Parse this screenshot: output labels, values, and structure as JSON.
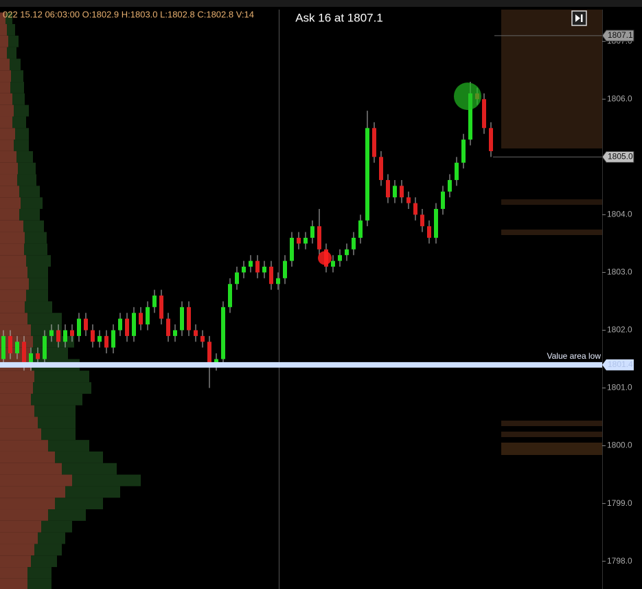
{
  "chart_data": {
    "type": "candlestick",
    "header": "022 15.12 06:03:00 O:1802.9 H:1803.0 L:1802.8 C:1802.8 V:14",
    "title": "Ask 16 at 1807.1",
    "ylim": [
      1797.52,
      1807.55
    ],
    "yticks": [
      {
        "value": 1807,
        "label": "1807.0"
      },
      {
        "value": 1806,
        "label": "1806.0"
      },
      {
        "value": 1805,
        "label": "1805.0"
      },
      {
        "value": 1804,
        "label": "1804.0"
      },
      {
        "value": 1803,
        "label": "1803.0"
      },
      {
        "value": 1802,
        "label": "1802.0"
      },
      {
        "value": 1801,
        "label": "1801.0"
      },
      {
        "value": 1800,
        "label": "1800.0"
      },
      {
        "value": 1799,
        "label": "1799.0"
      },
      {
        "value": 1798,
        "label": "1798.0"
      }
    ],
    "up_color": "#22dd22",
    "down_color": "#e02020",
    "candles": {
      "open": [
        1801.5,
        1801.9,
        1801.6,
        1801.8,
        1801.4,
        1801.6,
        1801.5,
        1801.9,
        1802.0,
        1801.8,
        1802.0,
        1801.9,
        1802.2,
        1802.0,
        1801.8,
        1801.9,
        1801.7,
        1802.0,
        1802.2,
        1801.9,
        1802.3,
        1802.1,
        1802.4,
        1802.6,
        1802.2,
        1801.9,
        1802.0,
        1802.4,
        1802.0,
        1801.9,
        1801.8,
        1801.4,
        1801.5,
        1802.4,
        1802.8,
        1803.0,
        1803.1,
        1803.2,
        1803.0,
        1803.1,
        1802.8,
        1802.9,
        1803.2,
        1803.6,
        1803.5,
        1803.6,
        1803.8,
        1803.4,
        1803.1,
        1803.2,
        1803.3,
        1803.4,
        1803.6,
        1803.9,
        1805.5,
        1805.0,
        1804.6,
        1804.3,
        1804.5,
        1804.3,
        1804.2,
        1804.0,
        1803.8,
        1803.6,
        1804.1,
        1804.4,
        1804.6,
        1804.9,
        1805.3,
        1806.1,
        1806.0,
        1805.5
      ],
      "high": [
        1802.0,
        1802.0,
        1801.9,
        1801.9,
        1801.7,
        1801.7,
        1802.0,
        1802.1,
        1802.1,
        1802.1,
        1802.1,
        1802.3,
        1802.3,
        1802.1,
        1802.0,
        1802.0,
        1802.1,
        1802.3,
        1802.3,
        1802.4,
        1802.4,
        1802.5,
        1802.7,
        1802.7,
        1802.3,
        1802.1,
        1802.5,
        1802.5,
        1802.1,
        1802.0,
        1801.9,
        1801.6,
        1802.5,
        1802.9,
        1803.1,
        1803.2,
        1803.3,
        1803.3,
        1803.2,
        1803.2,
        1803.0,
        1803.3,
        1803.7,
        1803.7,
        1803.7,
        1803.9,
        1804.1,
        1803.5,
        1803.3,
        1803.4,
        1803.5,
        1803.7,
        1804.0,
        1805.8,
        1805.6,
        1805.1,
        1804.7,
        1804.6,
        1804.6,
        1804.4,
        1804.3,
        1804.1,
        1803.9,
        1804.2,
        1804.5,
        1804.7,
        1805.0,
        1805.4,
        1806.3,
        1806.2,
        1806.1,
        1805.6
      ],
      "low": [
        1801.4,
        1801.5,
        1801.5,
        1801.3,
        1801.3,
        1801.4,
        1801.4,
        1801.8,
        1801.7,
        1801.7,
        1801.8,
        1801.8,
        1801.9,
        1801.7,
        1801.7,
        1801.6,
        1801.6,
        1801.9,
        1801.8,
        1801.8,
        1802.0,
        1802.0,
        1802.3,
        1802.1,
        1801.8,
        1801.8,
        1801.9,
        1801.9,
        1801.8,
        1801.7,
        1801.0,
        1801.3,
        1801.4,
        1802.3,
        1802.7,
        1802.9,
        1803.0,
        1802.9,
        1802.9,
        1802.7,
        1802.7,
        1802.8,
        1803.1,
        1803.4,
        1803.4,
        1803.5,
        1803.3,
        1803.0,
        1803.0,
        1803.1,
        1803.2,
        1803.3,
        1803.5,
        1803.8,
        1804.9,
        1804.5,
        1804.2,
        1804.2,
        1804.2,
        1804.1,
        1803.9,
        1803.7,
        1803.5,
        1803.5,
        1804.0,
        1804.3,
        1804.5,
        1804.8,
        1805.2,
        1805.9,
        1805.4,
        1805.0
      ],
      "close": [
        1801.9,
        1801.6,
        1801.8,
        1801.4,
        1801.6,
        1801.5,
        1801.9,
        1802.0,
        1801.8,
        1802.0,
        1801.9,
        1802.2,
        1802.0,
        1801.8,
        1801.9,
        1801.7,
        1802.0,
        1802.2,
        1801.9,
        1802.3,
        1802.1,
        1802.4,
        1802.6,
        1802.2,
        1801.9,
        1802.0,
        1802.4,
        1802.0,
        1801.9,
        1801.8,
        1801.4,
        1801.5,
        1802.4,
        1802.8,
        1803.0,
        1803.1,
        1803.2,
        1803.0,
        1803.1,
        1802.8,
        1802.9,
        1803.2,
        1803.6,
        1803.5,
        1803.6,
        1803.8,
        1803.4,
        1803.1,
        1803.2,
        1803.3,
        1803.4,
        1803.6,
        1803.9,
        1805.5,
        1805.0,
        1804.6,
        1804.3,
        1804.5,
        1804.3,
        1804.2,
        1804.0,
        1803.8,
        1803.6,
        1804.1,
        1804.4,
        1804.6,
        1804.9,
        1805.3,
        1806.1,
        1806.0,
        1805.5,
        1805.1
      ]
    },
    "volume_profile": {
      "xlim": [
        0,
        250
      ],
      "prices": [
        1807.4,
        1807.2,
        1807.0,
        1806.8,
        1806.6,
        1806.4,
        1806.2,
        1806.0,
        1805.8,
        1805.6,
        1805.4,
        1805.2,
        1805.0,
        1804.8,
        1804.6,
        1804.4,
        1804.2,
        1804.0,
        1803.8,
        1803.6,
        1803.4,
        1803.2,
        1803.0,
        1802.8,
        1802.6,
        1802.4,
        1802.2,
        1802.0,
        1801.8,
        1801.6,
        1801.4,
        1801.2,
        1801.0,
        1800.8,
        1800.6,
        1800.4,
        1800.2,
        1800.0,
        1799.8,
        1799.6,
        1799.4,
        1799.2,
        1799.0,
        1798.8,
        1798.6,
        1798.4,
        1798.2,
        1798.0,
        1797.8,
        1797.6
      ],
      "sell": [
        8,
        10,
        12,
        10,
        14,
        16,
        15,
        18,
        20,
        18,
        22,
        20,
        24,
        26,
        25,
        28,
        30,
        28,
        34,
        36,
        35,
        38,
        40,
        42,
        38,
        36,
        40,
        45,
        48,
        44,
        46,
        50,
        48,
        45,
        50,
        55,
        60,
        70,
        80,
        90,
        105,
        95,
        80,
        70,
        60,
        55,
        50,
        45,
        40,
        40
      ],
      "buy": [
        10,
        12,
        15,
        14,
        16,
        18,
        20,
        18,
        22,
        20,
        20,
        22,
        24,
        26,
        28,
        30,
        32,
        30,
        30,
        32,
        34,
        36,
        30,
        28,
        32,
        40,
        50,
        45,
        60,
        55,
        70,
        80,
        85,
        75,
        60,
        55,
        50,
        60,
        70,
        80,
        100,
        80,
        70,
        55,
        45,
        40,
        40,
        38,
        35,
        35
      ],
      "sell_color": "#7a3a2a",
      "buy_color": "#173a17"
    },
    "price_labels": [
      {
        "value": 1807.1,
        "label": "1807.1"
      },
      {
        "value": 1805.0,
        "label": "1805.0"
      }
    ],
    "value_area_low": {
      "value": 1801.4,
      "label": "1801.4",
      "name": "Value area low"
    },
    "markers": [
      {
        "index": 47,
        "value": 1803.25,
        "color": "#ff2020"
      },
      {
        "index": 68,
        "value": 1806.05,
        "color": "#22bb22"
      }
    ]
  }
}
